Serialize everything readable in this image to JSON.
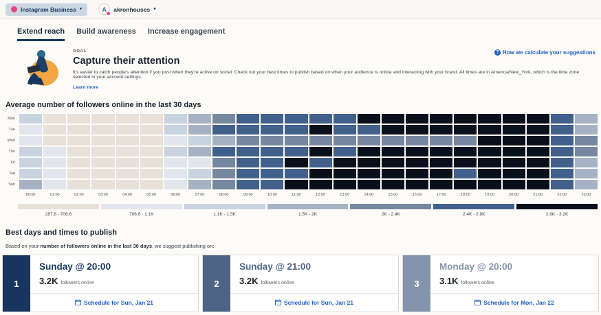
{
  "colors": {
    "pink": "#e8457f",
    "link_blue": "#2160c4",
    "chip_bg": "#ccd7e3",
    "active_tab_underline": "#17355c"
  },
  "header": {
    "profile_chip": {
      "label": "Instagram Business"
    },
    "account": {
      "initial": "A",
      "name": "akronhouses"
    }
  },
  "tabs": [
    {
      "label": "Extend reach",
      "active": true
    },
    {
      "label": "Build awareness",
      "active": false
    },
    {
      "label": "Increase engagement",
      "active": false
    }
  ],
  "goal": {
    "eyebrow": "GOAL",
    "title": "Capture their attention",
    "description": "It's easier to catch people's attention if you post when they're active on social. Check out your best times to publish based on when your audience is online and interacting with your brand. All times are in America/New_York, which is the time zone selected in your account settings.",
    "learn_more": "Learn more",
    "help_link": "How we calculate your suggestions"
  },
  "chart_data": {
    "type": "heatmap",
    "title": "Average number of followers online in the last 30 days",
    "rows": [
      "Mon",
      "Tue",
      "Wed",
      "Thu",
      "Fri",
      "Sat",
      "Sun"
    ],
    "columns": [
      "00:00",
      "01:00",
      "02:00",
      "03:00",
      "04:00",
      "05:00",
      "06:00",
      "07:00",
      "08:00",
      "09:00",
      "10:00",
      "11:00",
      "12:00",
      "13:00",
      "14:00",
      "15:00",
      "16:00",
      "17:00",
      "18:00",
      "19:00",
      "20:00",
      "21:00",
      "22:00",
      "23:00"
    ],
    "unit": "followers online",
    "buckets": [
      {
        "label": "287.6 - 706.6",
        "color": "#e7e1da"
      },
      {
        "label": "706.6 - 1.1K",
        "color": "#e2e6ec"
      },
      {
        "label": "1.1K - 1.5K",
        "color": "#c9d3e0"
      },
      {
        "label": "1.5K - 2K",
        "color": "#a6b1c4"
      },
      {
        "label": "2K - 2.4K",
        "color": "#76889f"
      },
      {
        "label": "2.4K - 2.8K",
        "color": "#42608c"
      },
      {
        "label": "2.8K - 3.2K",
        "color": "#0a0f1c"
      }
    ],
    "values_bucket_index": [
      [
        2,
        0,
        0,
        0,
        0,
        0,
        2,
        3,
        4,
        5,
        5,
        5,
        5,
        5,
        6,
        6,
        6,
        6,
        6,
        6,
        6,
        6,
        5,
        3
      ],
      [
        1,
        0,
        0,
        0,
        0,
        0,
        2,
        3,
        5,
        5,
        5,
        5,
        6,
        5,
        5,
        6,
        6,
        6,
        6,
        6,
        6,
        6,
        5,
        3
      ],
      [
        1,
        0,
        0,
        0,
        0,
        0,
        1,
        2,
        3,
        4,
        4,
        4,
        4,
        4,
        4,
        4,
        4,
        4,
        4,
        6,
        6,
        6,
        5,
        4
      ],
      [
        2,
        1,
        0,
        0,
        0,
        0,
        2,
        3,
        5,
        5,
        5,
        5,
        6,
        5,
        6,
        6,
        6,
        6,
        6,
        6,
        6,
        6,
        5,
        4
      ],
      [
        2,
        1,
        0,
        0,
        0,
        0,
        1,
        1,
        4,
        5,
        5,
        6,
        5,
        6,
        6,
        6,
        6,
        6,
        6,
        6,
        6,
        6,
        5,
        3
      ],
      [
        2,
        1,
        0,
        0,
        0,
        0,
        1,
        2,
        4,
        5,
        5,
        5,
        6,
        6,
        6,
        6,
        6,
        6,
        5,
        6,
        6,
        6,
        5,
        3
      ],
      [
        3,
        1,
        0,
        0,
        0,
        0,
        1,
        3,
        4,
        5,
        5,
        6,
        6,
        6,
        6,
        6,
        6,
        6,
        6,
        6,
        6,
        6,
        5,
        3
      ]
    ]
  },
  "best_times": {
    "title": "Best days and times to publish",
    "intro_prefix": "Based on your ",
    "intro_bold": "number of followers online in the last 30 days",
    "intro_suffix": ", we suggest publishing on:",
    "cards": [
      {
        "rank": "1",
        "title": "Sunday @ 20:00",
        "value": "3.2K",
        "value_suffix": "followers online",
        "cta": "Schedule for Sun, Jan 21",
        "accent": "#17355e"
      },
      {
        "rank": "2",
        "title": "Sunday @ 21:00",
        "value": "3.2K",
        "value_suffix": "followers online",
        "cta": "Schedule for Sun, Jan 21",
        "accent": "#4d6486"
      },
      {
        "rank": "3",
        "title": "Monday @ 20:00",
        "value": "3.1K",
        "value_suffix": "followers online",
        "cta": "Schedule for Mon, Jan 22",
        "accent": "#8494ac"
      }
    ]
  }
}
